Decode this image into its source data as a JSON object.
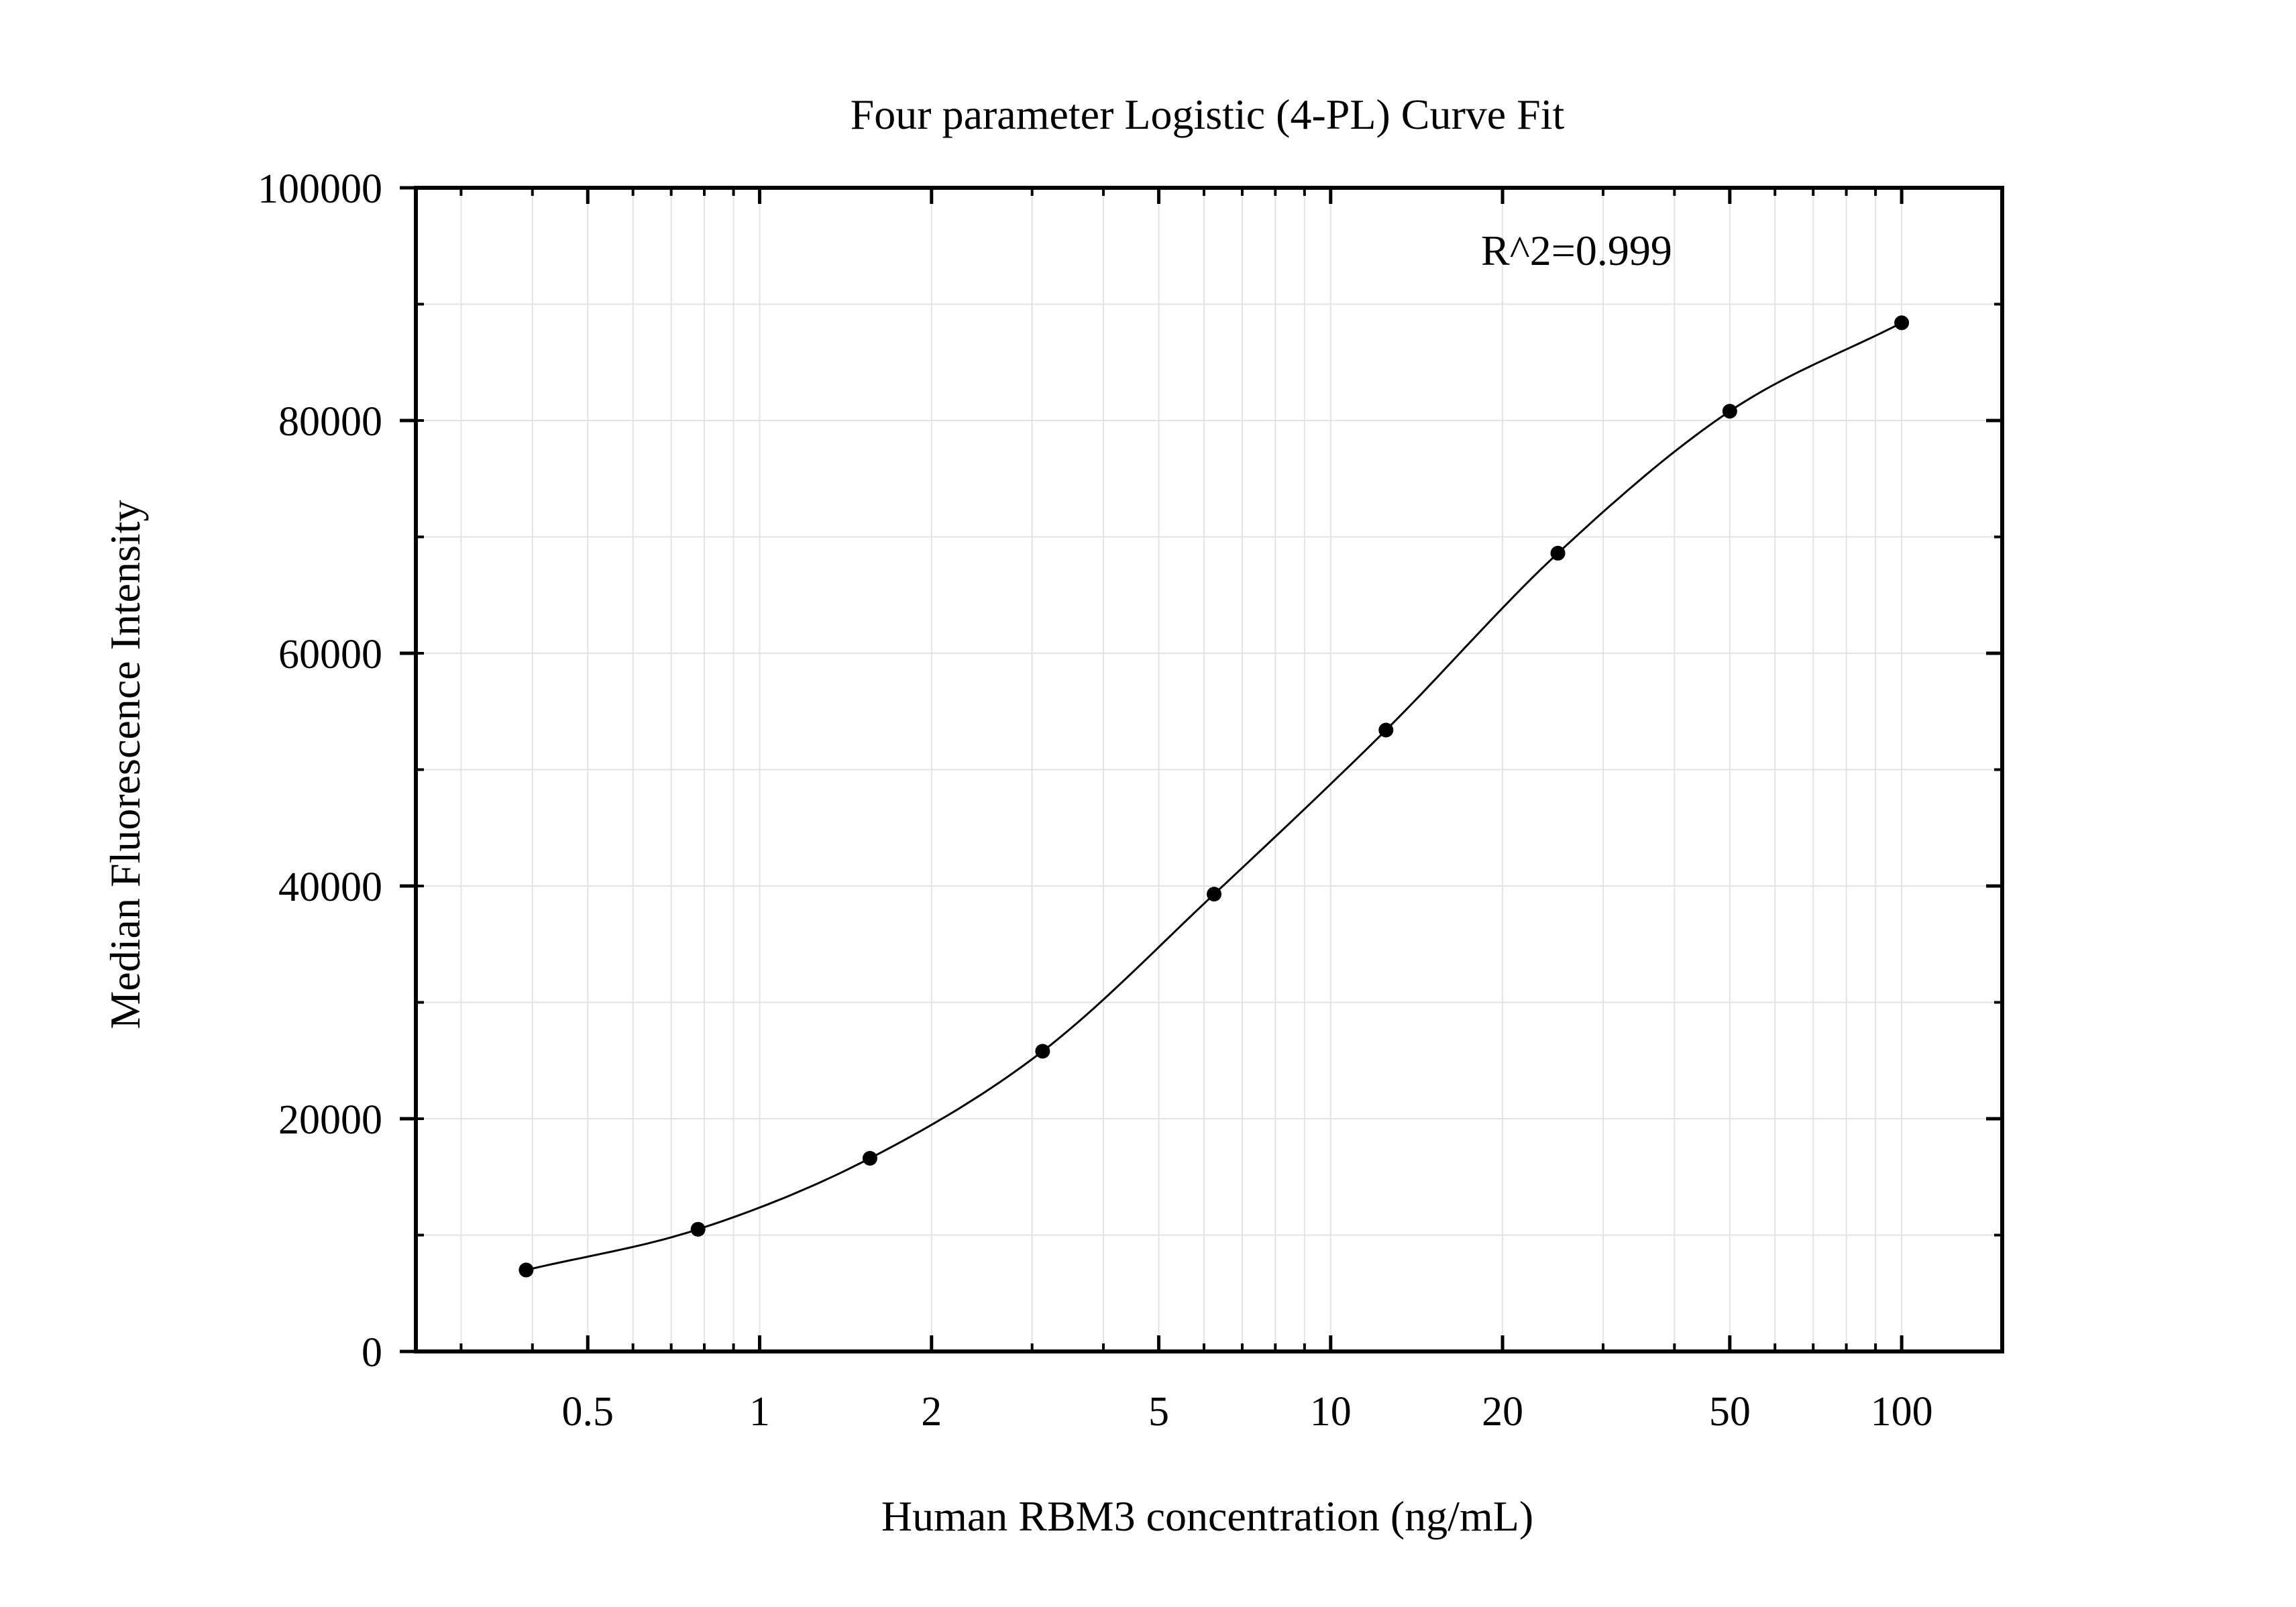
{
  "chart_data": {
    "type": "scatter",
    "title": "Four parameter Logistic (4-PL) Curve Fit",
    "xlabel": "Human RBM3 concentration (ng/mL)",
    "ylabel": "Median Fluorescence Intensity",
    "x_scale": "log",
    "xlim": [
      0.25,
      150
    ],
    "ylim": [
      0,
      100000
    ],
    "x_ticks": [
      0.5,
      1,
      2,
      5,
      10,
      20,
      50,
      100
    ],
    "x_tick_labels": [
      "0.5",
      "1",
      "2",
      "5",
      "10",
      "20",
      "50",
      "100"
    ],
    "y_ticks": [
      0,
      20000,
      40000,
      60000,
      80000,
      100000
    ],
    "y_tick_labels": [
      "0",
      "20000",
      "40000",
      "60000",
      "80000",
      "100000"
    ],
    "grid": true,
    "annotation": "R^2=0.999",
    "series": [
      {
        "x": [
          0.39,
          0.78,
          1.56,
          3.13,
          6.25,
          12.5,
          25,
          50,
          100
        ],
        "y": [
          7000,
          10500,
          16600,
          25800,
          39300,
          53400,
          68600,
          80800,
          88400
        ],
        "fit": "4-PL"
      }
    ]
  }
}
